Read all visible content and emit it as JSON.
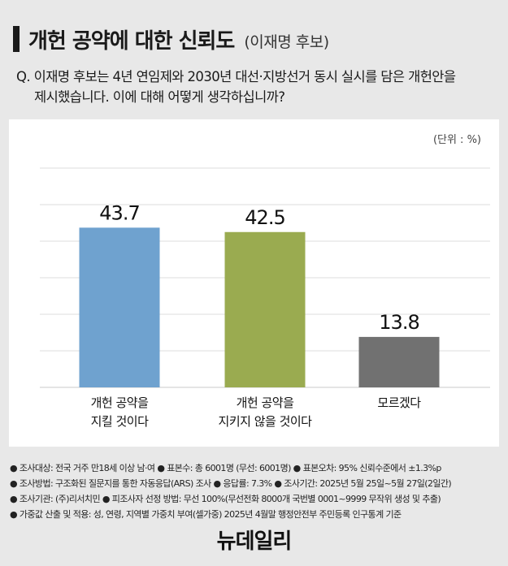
{
  "header": {
    "title": "개헌 공약에 대한 신뢰도",
    "subtitle": "(이재명 후보)"
  },
  "question": {
    "line1": "Q. 이재명 후보는 4년 연임제와 2030년 대선·지방선거 동시 실시를 담은 개헌안을",
    "line2": "제시했습니다. 이에 대해 어떻게 생각하십니까?"
  },
  "chart_data": {
    "type": "bar",
    "unit_label": "(단위 : %)",
    "categories": [
      [
        "개헌 공약을",
        "지킬 것이다"
      ],
      [
        "개헌 공약을",
        "지키지 않을 것이다"
      ],
      [
        "모르겠다"
      ]
    ],
    "values": [
      43.7,
      42.5,
      13.8
    ],
    "value_labels": [
      "43.7",
      "42.5",
      "13.8"
    ],
    "colors": [
      "#6fa2cf",
      "#9aab50",
      "#717171"
    ],
    "ylim": [
      0,
      60
    ],
    "grid": true
  },
  "notes": [
    "● 조사대상: 전국 거주 만18세 이상 남·여  ● 표본수: 총 6001명 (무선: 6001명)  ● 표본오차: 95% 신뢰수준에서 ±1.3%p",
    "● 조사방법: 구조화된 질문지를 통한 자동응답(ARS) 조사  ● 응답률: 7.3%  ● 조사기간: 2025년 5월 25일~5월 27일(2일간)",
    "● 조사기관: (주)리서치민  ● 피조사자 선정 방법: 무선 100%(무선전화 8000개 국번별 0001~9999 무작위 생성 및 추출)",
    "● 가중값 산출 및 적용: 성, 연령, 지역별 가중치 부여(셀가중) 2025년 4월말 행정안전부 주민등록 인구통계 기준"
  ],
  "logo": "뉴데일리"
}
